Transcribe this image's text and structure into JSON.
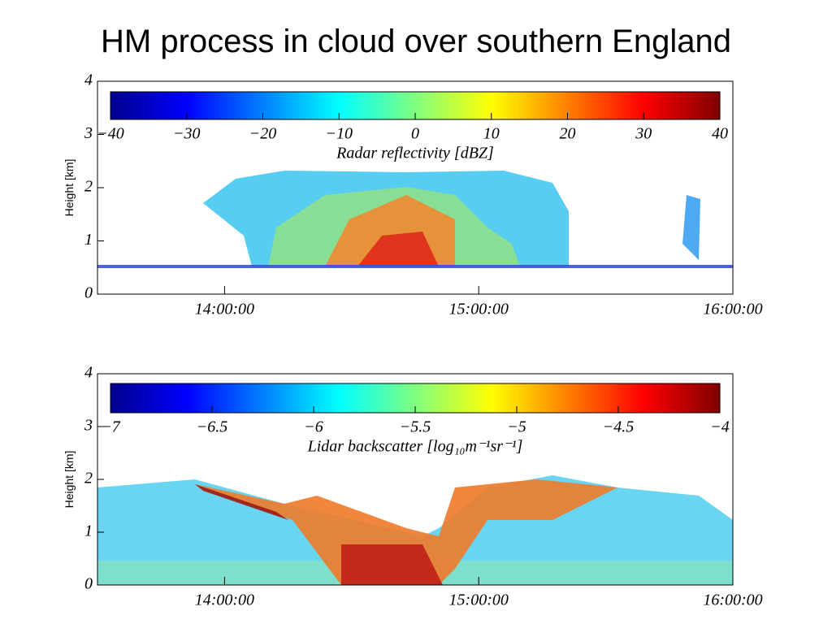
{
  "title": "HM process in cloud over southern England",
  "chart_data": [
    {
      "type": "heatmap",
      "ylabel": "Height [km]",
      "ylim": [
        0,
        4
      ],
      "yticks": [
        0,
        1,
        2,
        3,
        4
      ],
      "xlim": [
        13.5,
        16
      ],
      "xticks": [
        {
          "value": 14,
          "label": "14:00:00"
        },
        {
          "value": 15,
          "label": "15:00:00"
        },
        {
          "value": 16,
          "label": "16:00:00"
        }
      ],
      "colorbar": {
        "label": "Radar reflectivity [dBZ]",
        "clim": [
          -40,
          40
        ],
        "ticks": [
          {
            "value": -40,
            "label": "−40"
          },
          {
            "value": -30,
            "label": "−30"
          },
          {
            "value": -20,
            "label": "−20"
          },
          {
            "value": -10,
            "label": "−10"
          },
          0,
          10,
          20,
          30,
          40
        ]
      }
    },
    {
      "type": "heatmap",
      "ylabel": "Height [km]",
      "ylim": [
        0,
        4
      ],
      "yticks": [
        0,
        1,
        2,
        3,
        4
      ],
      "xlim": [
        13.5,
        16
      ],
      "xticks": [
        {
          "value": 14,
          "label": "14:00:00"
        },
        {
          "value": 15,
          "label": "15:00:00"
        },
        {
          "value": 16,
          "label": "16:00:00"
        }
      ],
      "colorbar": {
        "label": "Lidar backscatter [log₁₀m⁻¹sr⁻¹]",
        "clim": [
          -7,
          -4
        ],
        "ticks": [
          {
            "value": -7,
            "label": "−7"
          },
          {
            "value": -6.5,
            "label": "−6.5"
          },
          {
            "value": -6,
            "label": "−6"
          },
          {
            "value": -5.5,
            "label": "−5.5"
          },
          {
            "value": -5,
            "label": "−5"
          },
          {
            "value": -4.5,
            "label": "−4.5"
          },
          {
            "value": -4,
            "label": "−4"
          }
        ]
      }
    }
  ]
}
